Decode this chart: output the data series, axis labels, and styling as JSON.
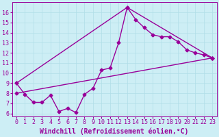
{
  "xlabel": "Windchill (Refroidissement éolien,°C)",
  "background_color": "#cdeef5",
  "line_color": "#990099",
  "xlim": [
    -0.5,
    23.5
  ],
  "ylim": [
    5.7,
    17.0
  ],
  "yticks": [
    6,
    7,
    8,
    9,
    10,
    11,
    12,
    13,
    14,
    15,
    16
  ],
  "xticks": [
    0,
    1,
    2,
    3,
    4,
    5,
    6,
    7,
    8,
    9,
    10,
    11,
    12,
    13,
    14,
    15,
    16,
    17,
    18,
    19,
    20,
    21,
    22,
    23
  ],
  "series1_x": [
    0,
    1,
    2,
    3,
    4,
    5,
    6,
    7,
    8,
    9,
    10,
    11,
    12,
    13,
    14,
    15,
    16,
    17,
    18,
    19,
    20,
    21,
    22,
    23
  ],
  "series1_y": [
    9.0,
    7.9,
    7.1,
    7.1,
    7.8,
    6.2,
    6.5,
    6.1,
    7.9,
    8.5,
    10.3,
    10.5,
    13.0,
    16.5,
    15.3,
    14.5,
    13.8,
    13.6,
    13.6,
    13.1,
    12.3,
    12.0,
    11.8,
    11.5
  ],
  "series2_x": [
    0,
    13,
    23
  ],
  "series2_y": [
    9.0,
    16.5,
    11.5
  ],
  "series3_x": [
    0,
    23
  ],
  "series3_y": [
    8.0,
    11.5
  ],
  "markersize": 2.5,
  "linewidth": 1.0,
  "grid_color": "#b0dde8",
  "tick_fontsize": 6,
  "xlabel_fontsize": 7
}
